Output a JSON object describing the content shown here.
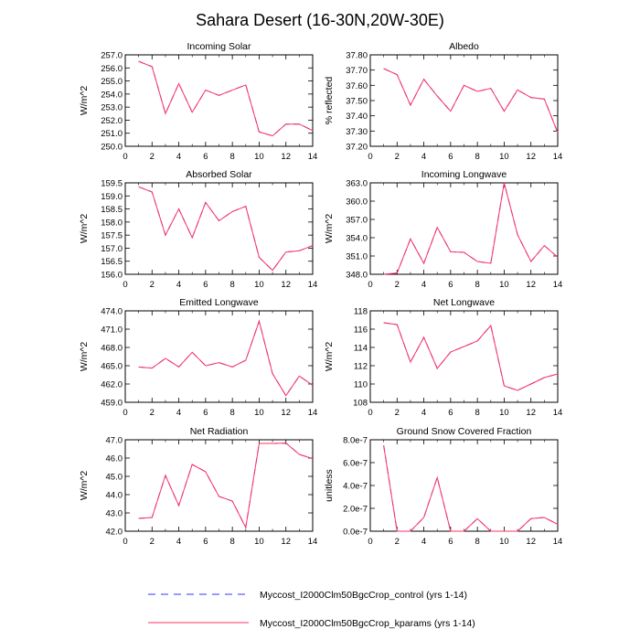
{
  "title": "Sahara Desert (16-30N,20W-30E)",
  "legend": [
    {
      "label": "Myccost_I2000Clm50BgcCrop_control (yrs 1-14)",
      "color": "#3333ff",
      "style": "dashed"
    },
    {
      "label": "Myccost_I2000Clm50BgcCrop_kparams (yrs 1-14)",
      "color": "#ff3366",
      "style": "solid"
    }
  ],
  "chart_data": [
    {
      "type": "line",
      "title": "Incoming Solar",
      "ylabel": "W/m^2",
      "x": [
        1,
        2,
        3,
        4,
        5,
        6,
        7,
        8,
        9,
        10,
        11,
        12,
        13,
        14
      ],
      "xlim": [
        0,
        14
      ],
      "xticks": [
        0,
        2,
        4,
        6,
        8,
        10,
        12,
        14
      ],
      "ylim": [
        250.0,
        257.0
      ],
      "yticks": [
        250.0,
        251.0,
        252.0,
        253.0,
        254.0,
        255.0,
        256.0,
        257.0
      ],
      "ytick_labels": [
        "250.0",
        "251.0",
        "252.0",
        "253.0",
        "254.0",
        "255.0",
        "256.0",
        "257.0"
      ],
      "series": [
        {
          "name": "control",
          "values": [
            256.5,
            256.1,
            252.5,
            254.8,
            252.6,
            254.3,
            253.9,
            254.3,
            254.7,
            251.1,
            250.8,
            251.7,
            251.7,
            251.2
          ]
        },
        {
          "name": "kparams",
          "values": [
            256.5,
            256.1,
            252.5,
            254.8,
            252.6,
            254.3,
            253.9,
            254.3,
            254.7,
            251.1,
            250.8,
            251.7,
            251.7,
            251.2
          ]
        }
      ]
    },
    {
      "type": "line",
      "title": "Albedo",
      "ylabel": "% reflected",
      "x": [
        1,
        2,
        3,
        4,
        5,
        6,
        7,
        8,
        9,
        10,
        11,
        12,
        13,
        14
      ],
      "xlim": [
        0,
        14
      ],
      "xticks": [
        0,
        2,
        4,
        6,
        8,
        10,
        12,
        14
      ],
      "ylim": [
        37.2,
        37.8
      ],
      "yticks": [
        37.2,
        37.3,
        37.4,
        37.5,
        37.6,
        37.7,
        37.8
      ],
      "ytick_labels": [
        "37.20",
        "37.30",
        "37.40",
        "37.50",
        "37.60",
        "37.70",
        "37.80"
      ],
      "series": [
        {
          "name": "control",
          "values": [
            37.71,
            37.67,
            37.47,
            37.64,
            37.53,
            37.43,
            37.6,
            37.56,
            37.58,
            37.43,
            37.57,
            37.52,
            37.51,
            37.29
          ]
        },
        {
          "name": "kparams",
          "values": [
            37.71,
            37.67,
            37.47,
            37.64,
            37.53,
            37.43,
            37.6,
            37.56,
            37.58,
            37.43,
            37.57,
            37.52,
            37.51,
            37.29
          ]
        }
      ]
    },
    {
      "type": "line",
      "title": "Absorbed Solar",
      "ylabel": "W/m^2",
      "x": [
        1,
        2,
        3,
        4,
        5,
        6,
        7,
        8,
        9,
        10,
        11,
        12,
        13,
        14
      ],
      "xlim": [
        0,
        14
      ],
      "xticks": [
        0,
        2,
        4,
        6,
        8,
        10,
        12,
        14
      ],
      "ylim": [
        156.0,
        159.5
      ],
      "yticks": [
        156.0,
        156.5,
        157.0,
        157.5,
        158.0,
        158.5,
        159.0,
        159.5
      ],
      "ytick_labels": [
        "156.0",
        "156.5",
        "157.0",
        "157.5",
        "158.0",
        "158.5",
        "159.0",
        "159.5"
      ],
      "series": [
        {
          "name": "control",
          "values": [
            159.35,
            159.15,
            157.5,
            158.5,
            157.4,
            158.75,
            158.05,
            158.4,
            158.6,
            156.65,
            156.15,
            156.85,
            156.9,
            157.1
          ]
        },
        {
          "name": "kparams",
          "values": [
            159.35,
            159.15,
            157.5,
            158.5,
            157.4,
            158.75,
            158.05,
            158.4,
            158.6,
            156.65,
            156.15,
            156.85,
            156.9,
            157.1
          ]
        }
      ]
    },
    {
      "type": "line",
      "title": "Incoming Longwave",
      "ylabel": "W/m^2",
      "x": [
        1,
        2,
        3,
        4,
        5,
        6,
        7,
        8,
        9,
        10,
        11,
        12,
        13,
        14
      ],
      "xlim": [
        0,
        14
      ],
      "xticks": [
        0,
        2,
        4,
        6,
        8,
        10,
        12,
        14
      ],
      "ylim": [
        348.0,
        363.0
      ],
      "yticks": [
        348.0,
        351.0,
        354.0,
        357.0,
        360.0,
        363.0
      ],
      "ytick_labels": [
        "348.0",
        "351.0",
        "354.0",
        "357.0",
        "360.0",
        "363.0"
      ],
      "series": [
        {
          "name": "control",
          "values": [
            348.0,
            348.2,
            353.8,
            349.8,
            355.7,
            351.7,
            351.6,
            350.1,
            349.8,
            363.0,
            354.5,
            350.1,
            352.7,
            350.8
          ]
        },
        {
          "name": "kparams",
          "values": [
            348.0,
            348.2,
            353.8,
            349.8,
            355.7,
            351.7,
            351.6,
            350.1,
            349.8,
            363.0,
            354.5,
            350.1,
            352.7,
            350.8
          ]
        }
      ]
    },
    {
      "type": "line",
      "title": "Emitted Longwave",
      "ylabel": "W/m^2",
      "x": [
        1,
        2,
        3,
        4,
        5,
        6,
        7,
        8,
        9,
        10,
        11,
        12,
        13,
        14
      ],
      "xlim": [
        0,
        14
      ],
      "xticks": [
        0,
        2,
        4,
        6,
        8,
        10,
        12,
        14
      ],
      "ylim": [
        459.0,
        474.0
      ],
      "yticks": [
        459.0,
        462.0,
        465.0,
        468.0,
        471.0,
        474.0
      ],
      "ytick_labels": [
        "459.0",
        "462.0",
        "465.0",
        "468.0",
        "471.0",
        "474.0"
      ],
      "series": [
        {
          "name": "control",
          "values": [
            464.8,
            464.6,
            466.2,
            464.8,
            467.2,
            465.0,
            465.5,
            464.8,
            465.9,
            472.3,
            463.7,
            460.1,
            463.3,
            461.8
          ]
        },
        {
          "name": "kparams",
          "values": [
            464.8,
            464.6,
            466.2,
            464.8,
            467.2,
            465.0,
            465.5,
            464.8,
            465.9,
            472.3,
            463.7,
            460.1,
            463.3,
            461.8
          ]
        }
      ]
    },
    {
      "type": "line",
      "title": "Net Longwave",
      "ylabel": "W/m^2",
      "x": [
        1,
        2,
        3,
        4,
        5,
        6,
        7,
        8,
        9,
        10,
        11,
        12,
        13,
        14
      ],
      "xlim": [
        0,
        14
      ],
      "xticks": [
        0,
        2,
        4,
        6,
        8,
        10,
        12,
        14
      ],
      "ylim": [
        108,
        118
      ],
      "yticks": [
        108,
        110,
        112,
        114,
        116,
        118
      ],
      "ytick_labels": [
        "108",
        "110",
        "112",
        "114",
        "116",
        "118"
      ],
      "series": [
        {
          "name": "control",
          "values": [
            116.7,
            116.5,
            112.4,
            115.1,
            111.7,
            113.5,
            114.1,
            114.7,
            116.4,
            109.8,
            109.3,
            110.0,
            110.7,
            111.1
          ]
        },
        {
          "name": "kparams",
          "values": [
            116.7,
            116.5,
            112.4,
            115.1,
            111.7,
            113.5,
            114.1,
            114.7,
            116.4,
            109.8,
            109.3,
            110.0,
            110.7,
            111.1
          ]
        }
      ]
    },
    {
      "type": "line",
      "title": "Net Radiation",
      "ylabel": "W/m^2",
      "x": [
        1,
        2,
        3,
        4,
        5,
        6,
        7,
        8,
        9,
        10,
        11,
        12,
        13,
        14
      ],
      "xlim": [
        0,
        14
      ],
      "xticks": [
        0,
        2,
        4,
        6,
        8,
        10,
        12,
        14
      ],
      "ylim": [
        42.0,
        47.0
      ],
      "yticks": [
        42.0,
        43.0,
        44.0,
        45.0,
        46.0,
        47.0
      ],
      "ytick_labels": [
        "42.0",
        "43.0",
        "44.0",
        "45.0",
        "46.0",
        "47.0"
      ],
      "series": [
        {
          "name": "control",
          "values": [
            42.7,
            42.75,
            45.05,
            43.4,
            45.65,
            45.25,
            43.9,
            43.65,
            42.2,
            46.8,
            46.8,
            46.82,
            46.2,
            45.97
          ]
        },
        {
          "name": "kparams",
          "values": [
            42.7,
            42.75,
            45.05,
            43.4,
            45.65,
            45.25,
            43.9,
            43.65,
            42.2,
            46.8,
            46.8,
            46.82,
            46.2,
            45.97
          ]
        }
      ]
    },
    {
      "type": "line",
      "title": "Ground Snow Covered Fraction",
      "ylabel": "unitless",
      "x": [
        1,
        2,
        3,
        4,
        5,
        6,
        7,
        8,
        9,
        10,
        11,
        12,
        13,
        14
      ],
      "xlim": [
        0,
        14
      ],
      "xticks": [
        0,
        2,
        4,
        6,
        8,
        10,
        12,
        14
      ],
      "ylim": [
        0.0,
        8e-07
      ],
      "yticks": [
        0.0,
        2e-07,
        4e-07,
        6e-07,
        8e-07
      ],
      "ytick_labels": [
        "0.0e-7",
        "2.0e-7",
        "4.0e-7",
        "6.0e-7",
        "8.0e-7"
      ],
      "series": [
        {
          "name": "control",
          "values": [
            7.5e-07,
            0.0,
            0.0,
            1.2e-07,
            4.7e-07,
            0.0,
            0.0,
            1.1e-07,
            0.0,
            0.0,
            0.0,
            1.1e-07,
            1.2e-07,
            6e-08
          ]
        },
        {
          "name": "kparams",
          "values": [
            7.5e-07,
            0.0,
            0.0,
            1.2e-07,
            4.7e-07,
            0.0,
            0.0,
            1.1e-07,
            0.0,
            0.0,
            0.0,
            1.1e-07,
            1.2e-07,
            6e-08
          ]
        }
      ]
    }
  ]
}
